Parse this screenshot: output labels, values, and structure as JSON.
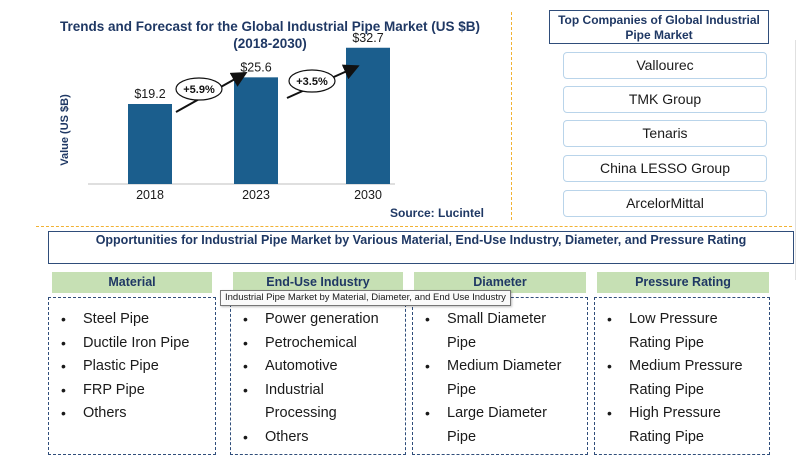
{
  "chart_data": {
    "type": "bar",
    "title": "Trends and Forecast for the Global Industrial Pipe Market (US $B) (2018-2030)",
    "categories": [
      "2018",
      "2023",
      "2030"
    ],
    "values": [
      19.2,
      25.6,
      32.7
    ],
    "value_labels": [
      "$19.2",
      "$25.6",
      "$32.7"
    ],
    "ylabel": "Value (US $B)",
    "xlabel": "",
    "ylim": [
      0,
      36
    ],
    "grid": false,
    "bar_color": "#1b5e8d",
    "growth_labels": [
      "+5.9%",
      "+3.5%"
    ]
  },
  "source": "Source: Lucintel",
  "companies": {
    "title": "Top Companies of Global Industrial Pipe Market",
    "items": [
      "Vallourec",
      "TMK Group",
      "Tenaris",
      "China LESSO Group",
      "ArcelorMittal"
    ]
  },
  "opportunities": {
    "title": "Opportunities for Industrial Pipe Market by Various Material, End-Use Industry, Diameter, and Pressure Rating",
    "categories": [
      {
        "name": "Material",
        "items": [
          "Steel Pipe",
          "Ductile Iron Pipe",
          "Plastic Pipe",
          "FRP Pipe",
          "Others"
        ]
      },
      {
        "name": "End-Use Industry",
        "items": [
          "Power generation",
          "Petrochemical",
          "Automotive",
          "Industrial Processing",
          "Others"
        ]
      },
      {
        "name": "Diameter",
        "items": [
          "Small Diameter Pipe",
          "Medium Diameter Pipe",
          "Large Diameter Pipe"
        ]
      },
      {
        "name": "Pressure Rating",
        "items": [
          "Low Pressure Rating Pipe",
          "Medium Pressure Rating Pipe",
          "High Pressure Rating Pipe"
        ]
      }
    ]
  },
  "tooltip": "Industrial Pipe Market by Material, Diameter, and End Use Industry",
  "colors": {
    "header_green": "#c6e0b4",
    "navy": "#1f3864",
    "divider_orange": "#f2b233",
    "company_border": "#b9d4ea"
  }
}
